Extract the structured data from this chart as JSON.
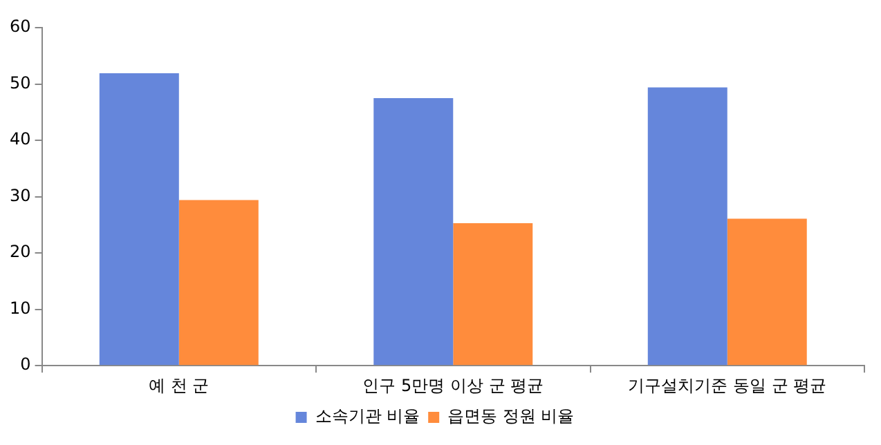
{
  "chart_data": {
    "type": "bar",
    "categories": [
      "예 천 군",
      "인구 5만명 이상 군 평균",
      "기구설치기준 동일 군 평균"
    ],
    "series": [
      {
        "name": "소속기관 비율",
        "color": "#6586db",
        "values": [
          51.9,
          47.5,
          49.4
        ]
      },
      {
        "name": "읍면동 정원 비율",
        "color": "#ff8c3c",
        "values": [
          29.4,
          25.3,
          26.1
        ]
      }
    ],
    "ylim": [
      0,
      60
    ],
    "yticks": [
      0,
      10,
      20,
      30,
      40,
      50,
      60
    ],
    "grid": false,
    "legend": "bottom"
  }
}
